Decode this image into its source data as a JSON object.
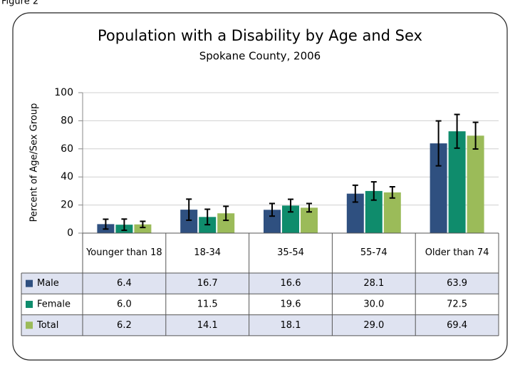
{
  "figure_label": "Figure 2",
  "chart_data": {
    "type": "bar",
    "title": "Population with a Disability by Age and Sex",
    "subtitle": "Spokane County, 2006",
    "y_label": "Percent of Age/Sex Group",
    "categories": [
      "Younger than 18",
      "18-34",
      "35-54",
      "55-74",
      "Older than 74"
    ],
    "series": [
      {
        "name": "Male",
        "color": "#2f5080",
        "values": [
          6.4,
          16.7,
          16.6,
          28.1,
          63.9
        ],
        "value_labels": [
          "6.4",
          "16.7",
          "16.6",
          "28.1",
          "63.9"
        ],
        "errors": [
          3.5,
          7.5,
          4.5,
          6,
          16
        ]
      },
      {
        "name": "Female",
        "color": "#0f8c6c",
        "values": [
          6.0,
          11.5,
          19.6,
          30.0,
          72.5
        ],
        "value_labels": [
          "6.0",
          "11.5",
          "19.6",
          "30.0",
          "72.5"
        ],
        "errors": [
          4,
          5.5,
          4.5,
          6.5,
          12
        ]
      },
      {
        "name": "Total",
        "color": "#9bbb59",
        "values": [
          6.2,
          14.1,
          18.1,
          29.0,
          69.4
        ],
        "value_labels": [
          "6.2",
          "14.1",
          "18.1",
          "29.0",
          "69.4"
        ],
        "errors": [
          2.2,
          5,
          3,
          4,
          9.5
        ]
      }
    ],
    "ylim": [
      0,
      100
    ],
    "yticks": [
      0,
      20,
      40,
      60,
      80,
      100
    ],
    "grid": true
  }
}
